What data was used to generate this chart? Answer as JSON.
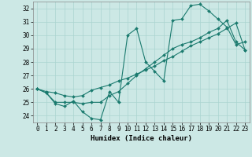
{
  "xlabel": "Humidex (Indice chaleur)",
  "bg_color": "#cce8e5",
  "grid_color": "#aad4d0",
  "line_color": "#1a7a6e",
  "xlim": [
    -0.5,
    23.5
  ],
  "ylim": [
    23.5,
    32.5
  ],
  "xticks": [
    0,
    1,
    2,
    3,
    4,
    5,
    6,
    7,
    8,
    9,
    10,
    11,
    12,
    13,
    14,
    15,
    16,
    17,
    18,
    19,
    20,
    21,
    22,
    23
  ],
  "yticks": [
    24,
    25,
    26,
    27,
    28,
    29,
    30,
    31,
    32
  ],
  "line1_x": [
    0,
    1,
    2,
    3,
    4,
    5,
    6,
    7,
    8,
    9,
    10,
    11,
    12,
    13,
    14,
    15,
    16,
    17,
    18,
    19,
    20,
    21,
    22,
    23
  ],
  "line1_y": [
    26.0,
    25.7,
    24.9,
    24.7,
    25.1,
    24.3,
    23.8,
    23.7,
    25.8,
    25.0,
    30.0,
    30.5,
    28.0,
    27.3,
    26.6,
    31.1,
    31.2,
    32.2,
    32.3,
    31.8,
    31.2,
    30.6,
    29.3,
    29.5
  ],
  "line2_x": [
    0,
    1,
    2,
    3,
    4,
    5,
    6,
    7,
    8,
    9,
    10,
    11,
    12,
    13,
    14,
    15,
    16,
    17,
    18,
    19,
    20,
    21,
    22,
    23
  ],
  "line2_y": [
    26.0,
    25.8,
    25.7,
    25.5,
    25.4,
    25.5,
    25.9,
    26.1,
    26.3,
    26.6,
    26.8,
    27.1,
    27.4,
    27.7,
    28.1,
    28.4,
    28.8,
    29.2,
    29.5,
    29.8,
    30.1,
    30.5,
    30.9,
    28.9
  ],
  "line3_x": [
    0,
    1,
    2,
    3,
    4,
    5,
    6,
    7,
    8,
    9,
    10,
    11,
    12,
    13,
    14,
    15,
    16,
    17,
    18,
    19,
    20,
    21,
    22,
    23
  ],
  "line3_y": [
    26.0,
    25.7,
    25.0,
    25.0,
    25.0,
    24.9,
    25.0,
    25.0,
    25.5,
    25.8,
    26.4,
    27.0,
    27.5,
    28.0,
    28.5,
    29.0,
    29.3,
    29.5,
    29.8,
    30.2,
    30.5,
    31.1,
    29.5,
    28.9
  ],
  "marker": "D",
  "markersize": 2.0,
  "linewidth": 0.8,
  "xlabel_fontsize": 6.5,
  "tick_fontsize": 5.5,
  "fig_width": 3.2,
  "fig_height": 2.0,
  "dpi": 100
}
